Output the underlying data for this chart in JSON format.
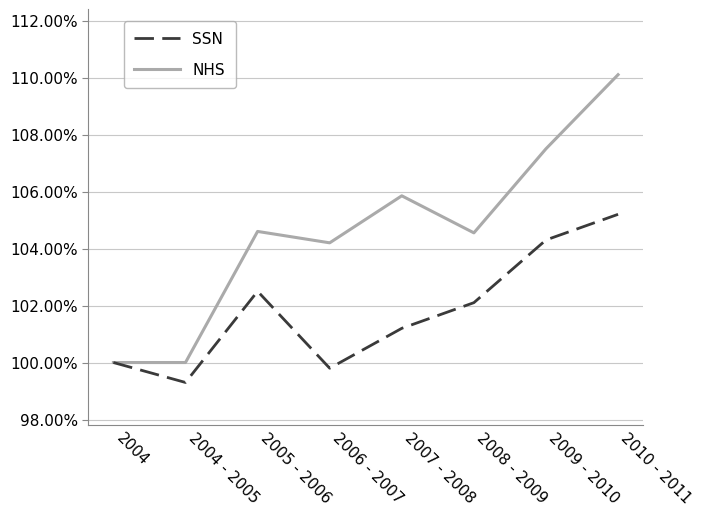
{
  "x_labels": [
    "2004",
    "2004 - 2005",
    "2005 - 2006",
    "2006 - 2007",
    "2007 - 2008",
    "2008 - 2009",
    "2009 - 2010",
    "2010 - 2011"
  ],
  "ssn_values": [
    100.0,
    99.3,
    102.5,
    99.8,
    101.2,
    102.1,
    104.3,
    105.2
  ],
  "nhs_values": [
    100.0,
    100.0,
    104.6,
    104.2,
    105.85,
    104.55,
    107.5,
    110.1
  ],
  "ssn_color": "#3a3a3a",
  "nhs_color": "#aaaaaa",
  "ssn_label": "SSN",
  "nhs_label": "NHS",
  "ylim_min": 97.8,
  "ylim_max": 112.4,
  "yticks": [
    98.0,
    100.0,
    102.0,
    104.0,
    106.0,
    108.0,
    110.0,
    112.0
  ],
  "bg_color": "#ffffff",
  "grid_color": "#c8c8c8",
  "legend_fontsize": 11,
  "tick_fontsize": 11
}
